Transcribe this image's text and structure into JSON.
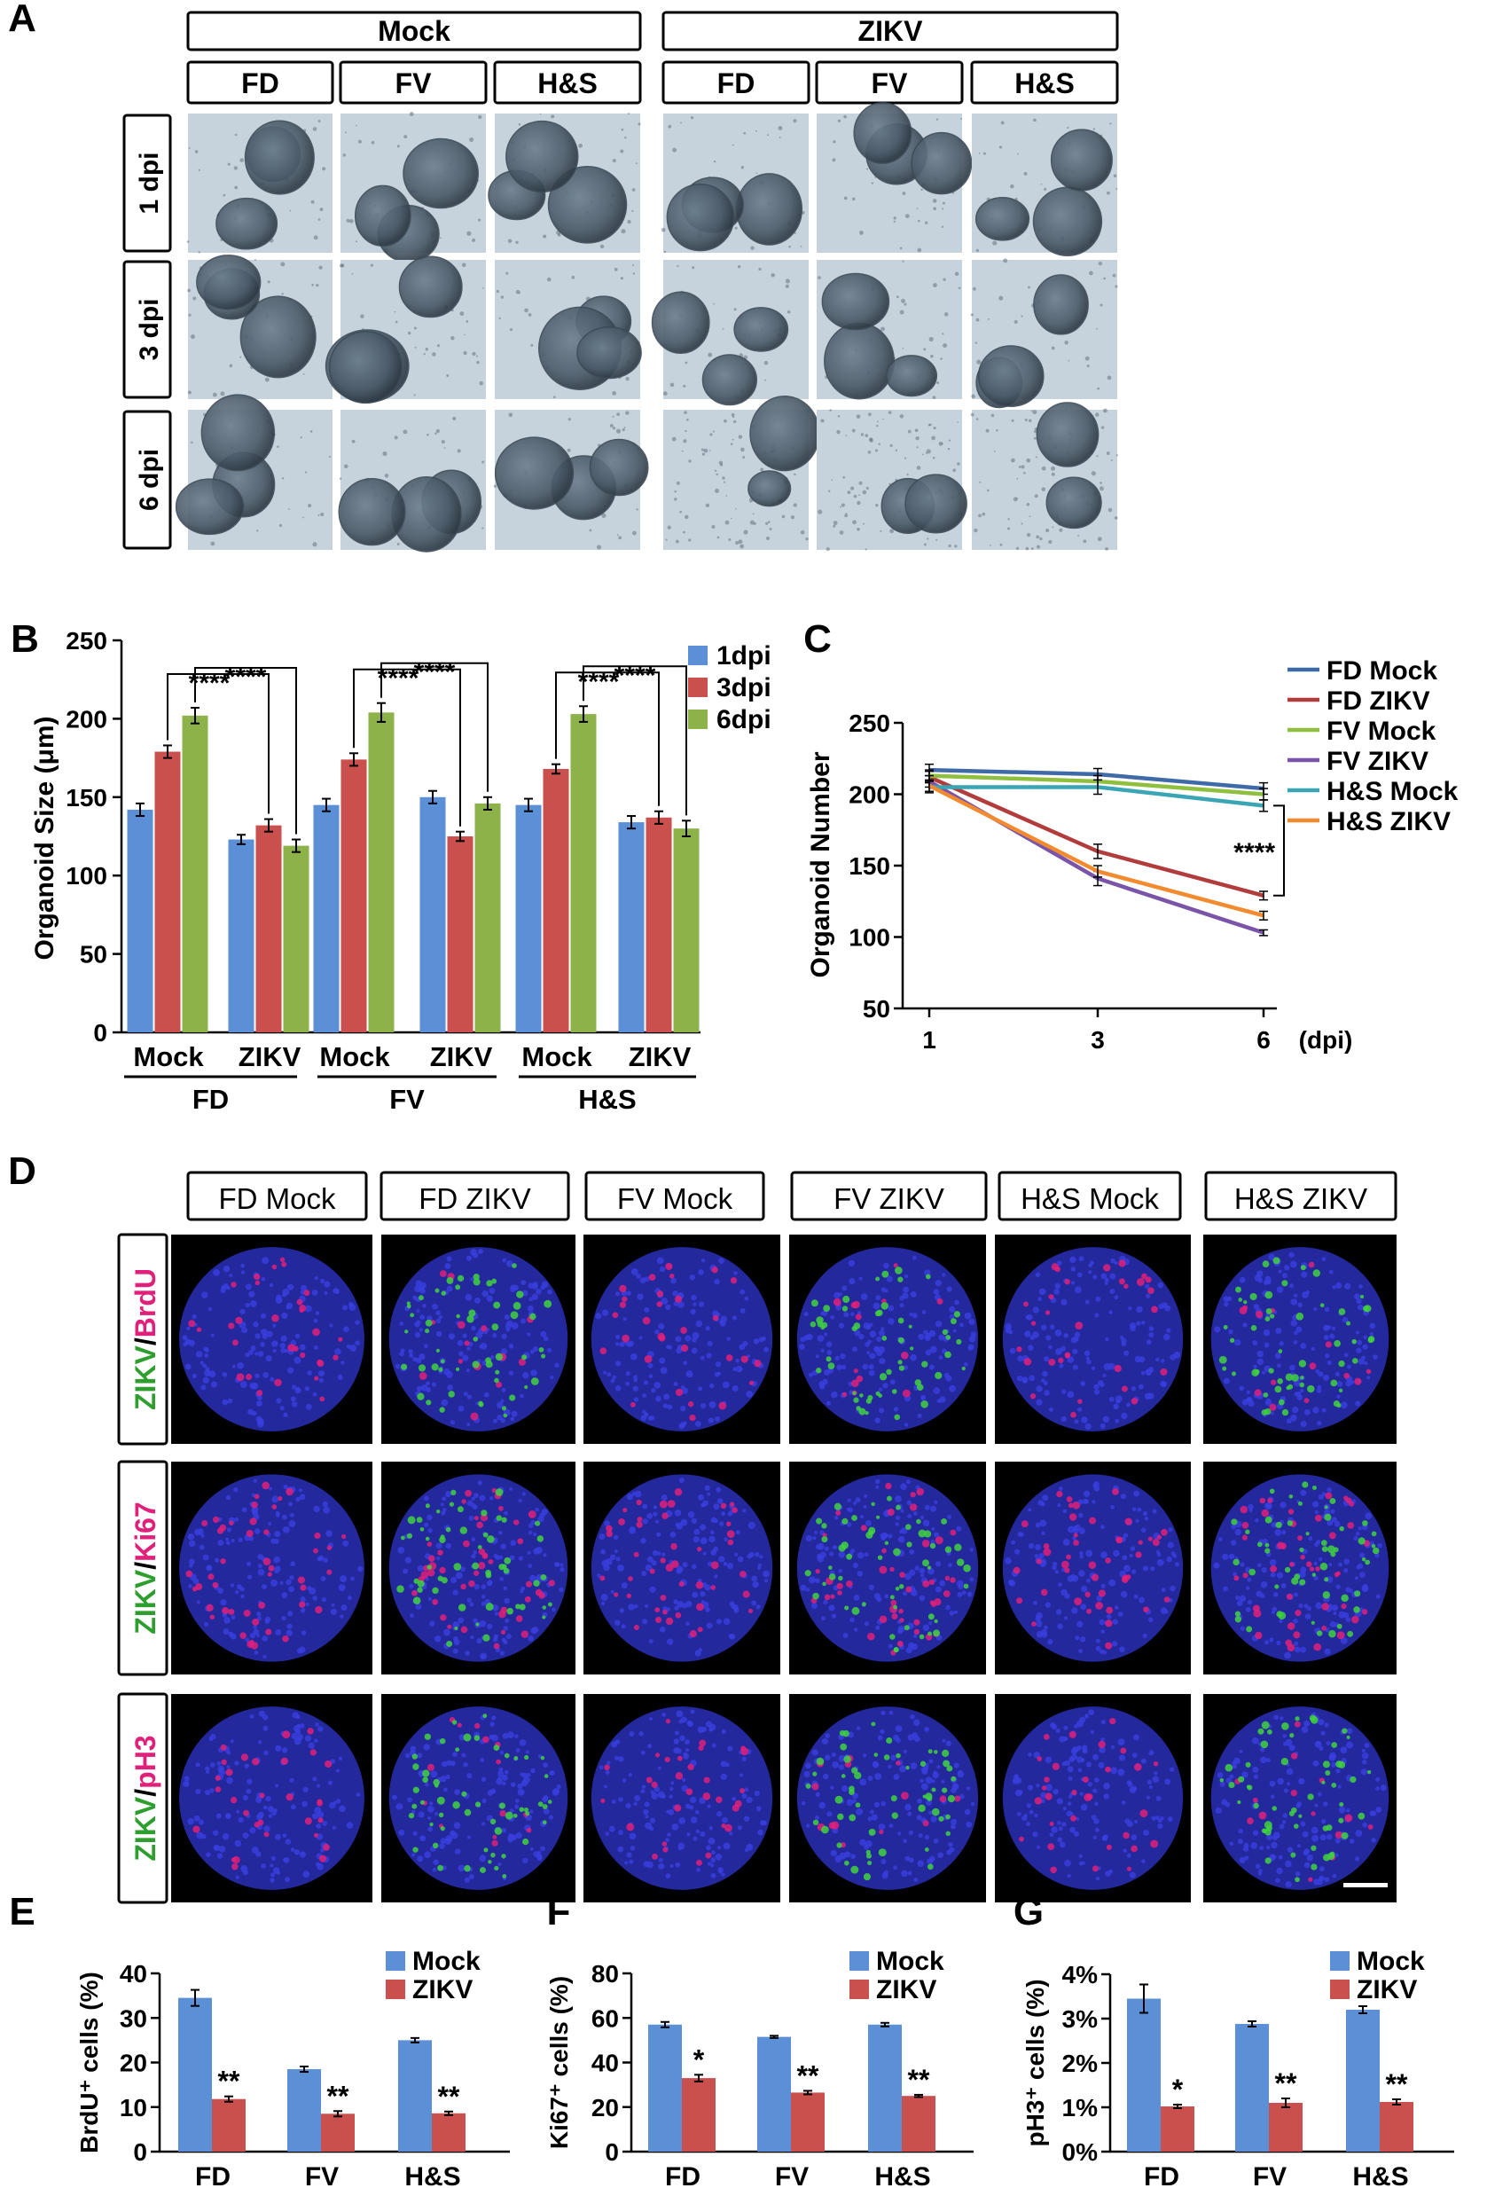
{
  "panels": {
    "A": {
      "letter": "A",
      "groups": [
        "Mock",
        "ZIKV"
      ],
      "columns": [
        "FD",
        "FV",
        "H&S"
      ],
      "rows": [
        "1 dpi",
        "3 dpi",
        "6 dpi"
      ]
    },
    "D": {
      "letter": "D",
      "columns": [
        "FD Mock",
        "FD ZIKV",
        "FV Mock",
        "FV ZIKV",
        "H&S Mock",
        "H&S ZIKV"
      ],
      "rows": [
        {
          "green": "ZIKV",
          "sep": "/",
          "red": "BrdU"
        },
        {
          "green": "ZIKV",
          "sep": "/",
          "red": "Ki67"
        },
        {
          "green": "ZIKV",
          "sep": "/",
          "red": "pH3"
        }
      ]
    }
  },
  "colors": {
    "blue": "#5b8fd6",
    "red": "#c9504c",
    "green": "#8db24a",
    "fd_mock": "#3f6aa8",
    "fd_zikv": "#b23b3b",
    "fv_mock": "#8fbf3f",
    "fv_zikv": "#7a54a8",
    "hs_mock": "#3aa5b5",
    "hs_zikv": "#f28b30",
    "fluor_green": "#2e9e2e",
    "fluor_red": "#e0207a"
  },
  "chart_data": [
    {
      "panel": "B",
      "type": "bar",
      "ylabel": "Organoid Size (μm)",
      "ylim": [
        0,
        250
      ],
      "yticks": [
        0,
        50,
        100,
        150,
        200,
        250
      ],
      "categories": [
        "Mock",
        "ZIKV",
        "Mock",
        "ZIKV",
        "Mock",
        "ZIKV"
      ],
      "groups": [
        "FD",
        "FV",
        "H&S"
      ],
      "series": [
        {
          "name": "1dpi",
          "values": [
            142,
            123,
            145,
            150,
            145,
            134
          ],
          "errors": [
            4,
            3,
            4,
            4,
            4,
            4
          ]
        },
        {
          "name": "3dpi",
          "values": [
            179,
            132,
            174,
            125,
            168,
            137
          ],
          "errors": [
            4,
            4,
            4,
            3,
            3,
            4
          ]
        },
        {
          "name": "6dpi",
          "values": [
            202,
            119,
            204,
            146,
            203,
            130
          ],
          "errors": [
            5,
            4,
            6,
            4,
            5,
            5
          ]
        }
      ],
      "annotations": [
        "****",
        "****",
        "****",
        "****",
        "****",
        "****"
      ],
      "legend": "top-right"
    },
    {
      "panel": "C",
      "type": "line",
      "ylabel": "Organoid Number",
      "xunit": "(dpi)",
      "x": [
        1,
        3,
        6
      ],
      "ylim": [
        50,
        250
      ],
      "yticks": [
        50,
        100,
        150,
        200,
        250
      ],
      "series": [
        {
          "name": "FD Mock",
          "values": [
            217,
            214,
            204
          ],
          "errors": [
            4,
            4,
            4
          ]
        },
        {
          "name": "FD ZIKV",
          "values": [
            212,
            160,
            129
          ],
          "errors": [
            4,
            5,
            3
          ]
        },
        {
          "name": "FV Mock",
          "values": [
            213,
            209,
            200
          ],
          "errors": [
            4,
            4,
            4
          ]
        },
        {
          "name": "FV ZIKV",
          "values": [
            209,
            141,
            103
          ],
          "errors": [
            4,
            5,
            2
          ]
        },
        {
          "name": "H&S Mock",
          "values": [
            205,
            205,
            192
          ],
          "errors": [
            4,
            5,
            4
          ]
        },
        {
          "name": "H&S ZIKV",
          "values": [
            206,
            146,
            115
          ],
          "errors": [
            4,
            4,
            3
          ]
        }
      ],
      "annotation": "****",
      "legend": "top-right"
    },
    {
      "panel": "E",
      "type": "bar",
      "ylabel": "BrdU⁺ cells (%)",
      "ylim": [
        0,
        40
      ],
      "yticks": [
        0,
        10,
        20,
        30,
        40
      ],
      "categories": [
        "FD",
        "FV",
        "H&S"
      ],
      "series": [
        {
          "name": "Mock",
          "values": [
            34.5,
            18.5,
            25.0
          ],
          "errors": [
            1.8,
            0.6,
            0.5
          ]
        },
        {
          "name": "ZIKV",
          "values": [
            11.8,
            8.5,
            8.6
          ],
          "errors": [
            0.6,
            0.6,
            0.4
          ]
        }
      ],
      "annotations": [
        "**",
        "**",
        "**"
      ],
      "legend": "top-right"
    },
    {
      "panel": "F",
      "type": "bar",
      "ylabel": "Ki67⁺ cells (%)",
      "ylim": [
        0,
        80
      ],
      "yticks": [
        0,
        20,
        40,
        60,
        80
      ],
      "categories": [
        "FD",
        "FV",
        "H&S"
      ],
      "series": [
        {
          "name": "Mock",
          "values": [
            57,
            51.5,
            57
          ],
          "errors": [
            1.2,
            0.5,
            0.8
          ]
        },
        {
          "name": "ZIKV",
          "values": [
            33,
            26.5,
            25
          ],
          "errors": [
            1.5,
            0.8,
            0.5
          ]
        }
      ],
      "annotations": [
        "*",
        "**",
        "**"
      ],
      "legend": "top-right"
    },
    {
      "panel": "G",
      "type": "bar",
      "ylabel": "pH3⁺ cells (%)",
      "ylim": [
        0,
        4
      ],
      "yticks": [
        0,
        1,
        2,
        3,
        4
      ],
      "ytick_suffix": "%",
      "categories": [
        "FD",
        "FV",
        "H&S"
      ],
      "series": [
        {
          "name": "Mock",
          "values": [
            3.45,
            2.88,
            3.2
          ],
          "errors": [
            0.32,
            0.06,
            0.08
          ]
        },
        {
          "name": "ZIKV",
          "values": [
            1.02,
            1.1,
            1.12
          ],
          "errors": [
            0.04,
            0.1,
            0.06
          ]
        }
      ],
      "annotations": [
        "*",
        "**",
        "**"
      ],
      "legend": "top-right"
    }
  ]
}
